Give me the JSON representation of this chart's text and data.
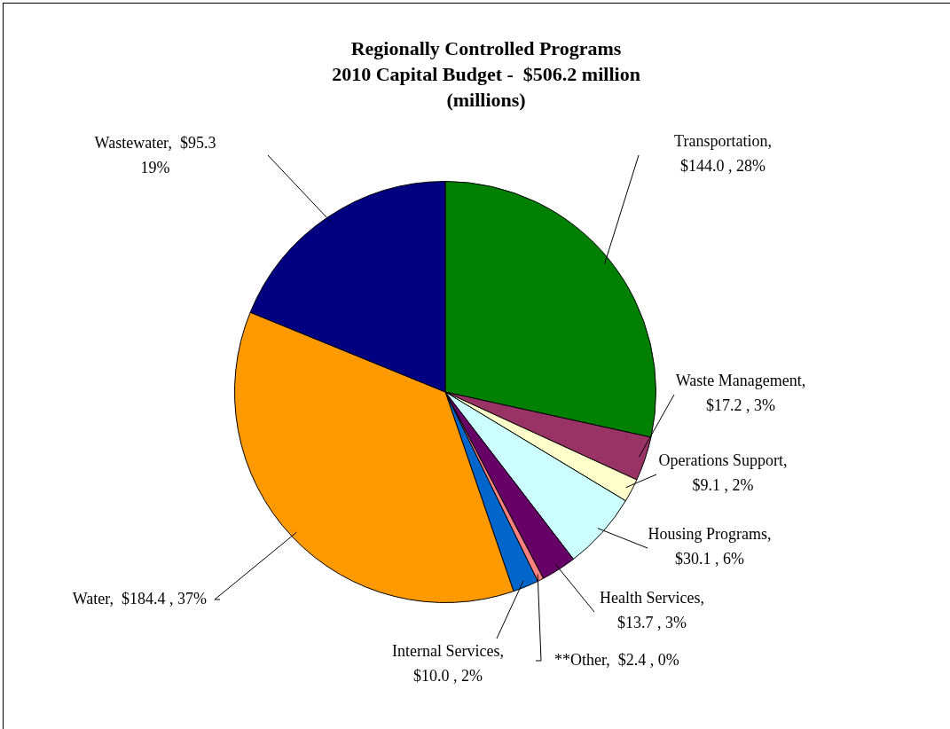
{
  "chart_data": {
    "type": "pie",
    "title": "Regionally Controlled Programs\n2010 Capital Budget -  $506.2 million\n(millions)",
    "categories": [
      "Transportation",
      "Waste Management",
      "Operations Support",
      "Housing Programs",
      "Health Services",
      "**Other",
      "Internal Services",
      "Water",
      "Wastewater"
    ],
    "values": [
      144.0,
      17.2,
      9.1,
      30.1,
      13.7,
      2.4,
      10.0,
      184.4,
      95.3
    ],
    "colors": [
      "#008000",
      "#993366",
      "#ffffcc",
      "#ccffff",
      "#660066",
      "#ff8080",
      "#0066cc",
      "#ff9900",
      "#000080"
    ],
    "value_labels": [
      ",\n$144.0 , 28%",
      ",\n$17.2 , 3%",
      ",\n$9.1 , 2%",
      ",\n$30.1 , 6%",
      ",\n$13.7 , 3%",
      ",  $2.4 , 0%",
      ",\n$10.0 , 2%",
      ",  $184.4 , 37%",
      ",  $95.3\n19%"
    ],
    "legend": false
  }
}
